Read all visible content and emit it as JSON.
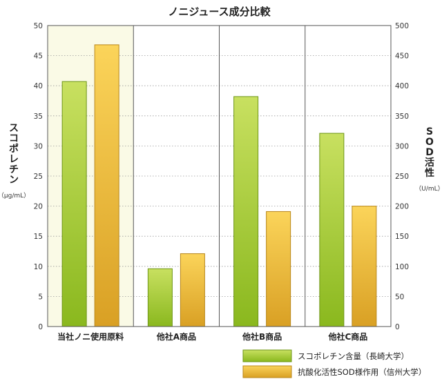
{
  "chart_data": {
    "type": "bar",
    "title": "ノニジュース成分比較",
    "categories": [
      "当社ノニ使用原料",
      "他社A商品",
      "他社B商品",
      "他社C商品"
    ],
    "highlight_category": 0,
    "highlight_color": "#c00000",
    "highlight_bg": "#fafae6",
    "left_axis": {
      "title": "スコポレチン",
      "unit": "（μg/mL）",
      "range": [
        0,
        50
      ],
      "ticks": [
        0,
        5,
        10,
        15,
        20,
        25,
        30,
        35,
        40,
        45,
        50
      ]
    },
    "right_axis": {
      "title": "SOD活性",
      "unit": "（U/mL）",
      "range": [
        0,
        500
      ],
      "ticks": [
        0,
        50,
        100,
        150,
        200,
        250,
        300,
        350,
        400,
        450,
        500
      ]
    },
    "series": [
      {
        "name": "スコポレチン含量（長崎大学）",
        "axis": "left",
        "color_top": "#c8e060",
        "color_bottom": "#8ab81e",
        "stroke": "#6d9516",
        "values": [
          40.7,
          9.6,
          38.2,
          32.1
        ]
      },
      {
        "name": "抗酸化活性SOD様作用（信州大学）",
        "axis": "right",
        "color_top": "#fbd45a",
        "color_bottom": "#d9a024",
        "stroke": "#b8861a",
        "values": [
          468,
          121,
          191,
          200
        ]
      }
    ],
    "grid": true,
    "legend_position": "bottom-right"
  }
}
